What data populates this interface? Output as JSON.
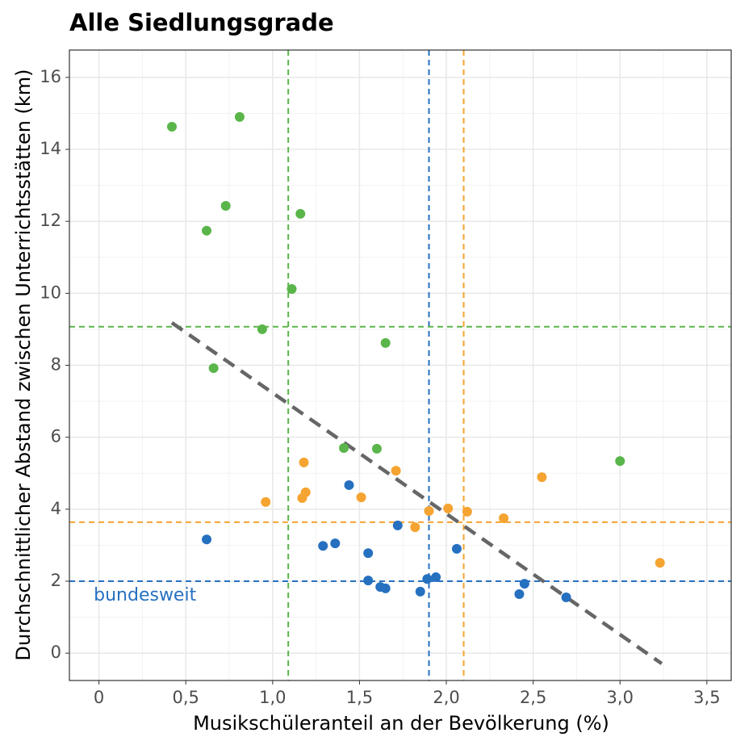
{
  "chart_data": {
    "type": "scatter",
    "title": "Alle Siedlungsgrade",
    "x_label": "Musikschüleranteil an der Bevölkerung (%)",
    "y_label": "Durchschnittlicher Abstand zwischen Unterrichtsstätten (km)",
    "xlim": [
      -0.17,
      3.64
    ],
    "ylim": [
      -0.76,
      16.76
    ],
    "xticks": [
      0,
      {
        "value": 0.5,
        "label": "0,5"
      },
      {
        "value": 1,
        "label": "1,0"
      },
      {
        "value": 1.5,
        "label": "1,5"
      },
      {
        "value": 2,
        "label": "2,0"
      },
      {
        "value": 2.5,
        "label": "2,5"
      },
      {
        "value": 3,
        "label": "3,0"
      },
      {
        "value": 3.5,
        "label": "3,5"
      }
    ],
    "yticks": [
      0,
      2,
      4,
      6,
      8,
      10,
      12,
      14,
      16
    ],
    "grid": true,
    "minor_grid": true,
    "series": [
      {
        "color": "#5ab54a",
        "x": [
          0.42,
          0.81,
          0.73,
          0.62,
          1.16,
          1.11,
          0.94,
          0.66,
          1.65,
          1.41,
          1.6,
          3.0
        ],
        "values": [
          14.63,
          14.9,
          12.43,
          11.74,
          12.21,
          10.12,
          9.0,
          7.92,
          8.62,
          5.7,
          5.68,
          5.34
        ]
      },
      {
        "color": "#f5a431",
        "x": [
          1.18,
          1.19,
          1.17,
          0.96,
          1.51,
          1.71,
          1.82,
          1.9,
          2.01,
          2.12,
          2.33,
          2.55,
          3.23
        ],
        "values": [
          5.3,
          4.47,
          4.31,
          4.2,
          4.33,
          5.07,
          3.5,
          3.95,
          4.02,
          3.93,
          3.75,
          4.89,
          2.51
        ]
      },
      {
        "color": "#2670c0",
        "x": [
          0.62,
          1.29,
          1.36,
          1.44,
          1.55,
          1.55,
          1.62,
          1.65,
          1.85,
          1.89,
          1.94,
          1.72,
          2.06,
          2.42,
          2.45,
          2.69
        ],
        "values": [
          3.16,
          2.98,
          3.05,
          4.67,
          2.78,
          2.02,
          1.84,
          1.8,
          1.71,
          2.06,
          2.11,
          3.55,
          2.9,
          1.64,
          1.93,
          1.55
        ]
      }
    ],
    "reference_lines": [
      {
        "axis": "x",
        "value": 1.09,
        "color": "#5ab54a"
      },
      {
        "axis": "x",
        "value": 1.9,
        "color": "#2670c0"
      },
      {
        "axis": "x",
        "value": 2.1,
        "color": "#f5a431"
      },
      {
        "axis": "y",
        "value": 9.07,
        "color": "#5ab54a"
      },
      {
        "axis": "y",
        "value": 3.64,
        "color": "#f5a431"
      },
      {
        "axis": "y",
        "value": 2.0,
        "color": "#2670c0"
      }
    ],
    "trend_line": {
      "color": "#666666",
      "x": [
        0.42,
        3.24
      ],
      "y": [
        9.18,
        -0.29
      ]
    },
    "annotations": [
      {
        "text": "bundesweit",
        "x": -0.03,
        "y": 1.6,
        "color": "#2670c0"
      }
    ]
  }
}
